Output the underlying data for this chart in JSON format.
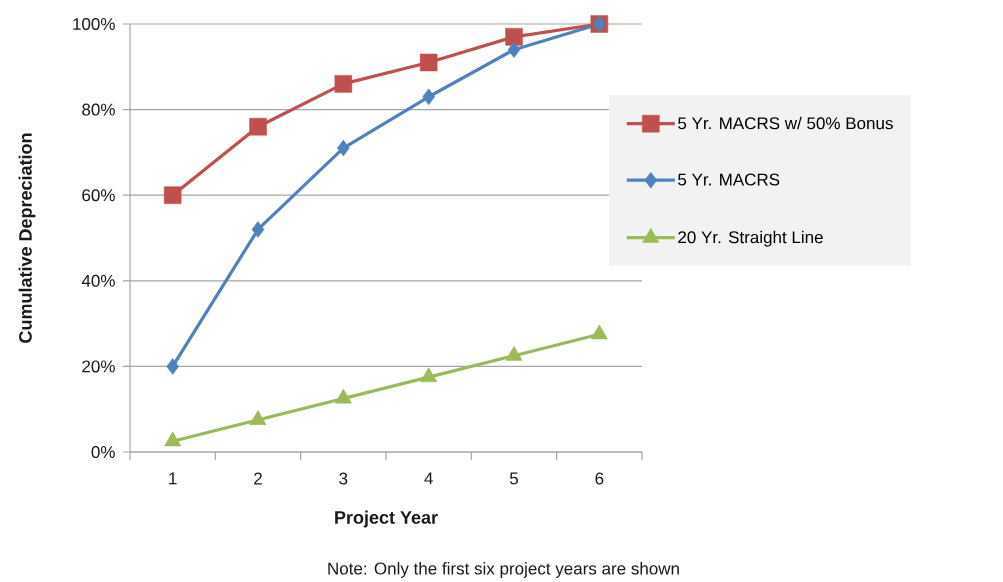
{
  "chart_data": {
    "type": "line",
    "xlabel": "Project Year",
    "ylabel": "Cumulative Depreciation",
    "categories": [
      "1",
      "2",
      "3",
      "4",
      "5",
      "6"
    ],
    "ylim": [
      0,
      100
    ],
    "yticks": [
      {
        "value": 0,
        "label": "0%"
      },
      {
        "value": 20,
        "label": "20%"
      },
      {
        "value": 40,
        "label": "40%"
      },
      {
        "value": 60,
        "label": "60%"
      },
      {
        "value": 80,
        "label": "80%"
      },
      {
        "value": 100,
        "label": "100%"
      }
    ],
    "grid": "y",
    "legend": "right",
    "line_style": "solid",
    "series": [
      {
        "name": "5 Yr. MACRS w/ 50% Bonus",
        "color": "#c0504d",
        "marker": "square",
        "values": [
          60,
          76,
          86,
          91,
          97,
          100
        ]
      },
      {
        "name": "5 Yr. MACRS",
        "color": "#4f81bd",
        "marker": "diamond",
        "values": [
          20,
          52,
          71,
          83,
          94,
          100
        ]
      },
      {
        "name": "20 Yr. Straight Line",
        "color": "#9bbb59",
        "marker": "triangle",
        "values": [
          2.5,
          7.5,
          12.5,
          17.5,
          22.5,
          27.5
        ]
      }
    ],
    "annotations": [
      "Note: Only the first six project years are shown"
    ]
  }
}
